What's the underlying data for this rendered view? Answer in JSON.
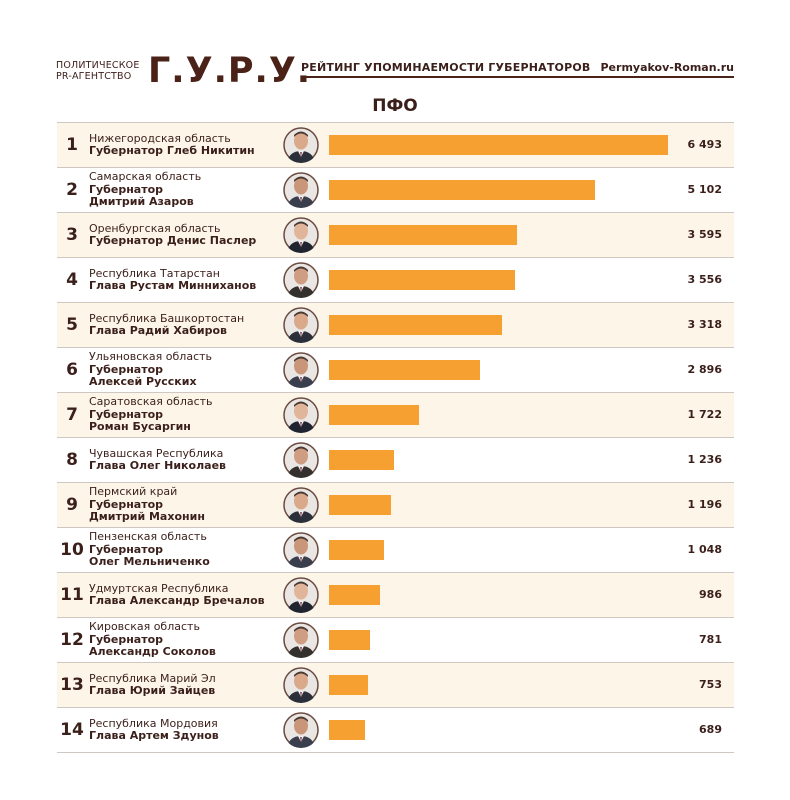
{
  "header": {
    "agency_line1": "ПОЛИТИЧЕСКОЕ",
    "agency_line2": "PR-АГЕНТСТВО",
    "logo": "Г.У.Р.У.",
    "rating_title": "РЕЙТИНГ УПОМИНАЕМОСТИ ГУБЕРНАТОРОВ",
    "site": "Permyakov-Roman.ru"
  },
  "section_title": "ПФО",
  "colors": {
    "bar": "#f5a031",
    "text": "#3b1f1a",
    "row_alt": "#fdf6e8"
  },
  "chart_data": {
    "type": "bar",
    "title": "ПФО",
    "orientation": "horizontal",
    "xlim": [
      0,
      6493
    ],
    "rows": [
      {
        "rank": "1",
        "region": "Нижегородская область",
        "title_lines": [
          "Губернатор Глеб Никитин"
        ],
        "value": 6493,
        "value_label": "6 493"
      },
      {
        "rank": "2",
        "region": "Самарская область",
        "title_lines": [
          "Губернатор",
          "Дмитрий Азаров"
        ],
        "value": 5102,
        "value_label": "5 102"
      },
      {
        "rank": "3",
        "region": "Оренбургская область",
        "title_lines": [
          "Губернатор Денис Паслер"
        ],
        "value": 3595,
        "value_label": "3 595"
      },
      {
        "rank": "4",
        "region": "Республика Татарстан",
        "title_lines": [
          "Глава Рустам Минниханов"
        ],
        "value": 3556,
        "value_label": "3 556"
      },
      {
        "rank": "5",
        "region": "Республика Башкортостан",
        "title_lines": [
          "Глава Радий Хабиров"
        ],
        "value": 3318,
        "value_label": "3 318"
      },
      {
        "rank": "6",
        "region": "Ульяновская область",
        "title_lines": [
          "Губернатор",
          "Алексей Русских"
        ],
        "value": 2896,
        "value_label": "2 896"
      },
      {
        "rank": "7",
        "region": "Саратовская область",
        "title_lines": [
          "Губернатор",
          "Роман Бусаргин"
        ],
        "value": 1722,
        "value_label": "1 722"
      },
      {
        "rank": "8",
        "region": "Чувашская Республика",
        "title_lines": [
          "Глава Олег Николаев"
        ],
        "value": 1236,
        "value_label": "1 236"
      },
      {
        "rank": "9",
        "region": "Пермский край",
        "title_lines": [
          "Губернатор",
          "Дмитрий Махонин"
        ],
        "value": 1196,
        "value_label": "1 196"
      },
      {
        "rank": "10",
        "region": "Пензенская область",
        "title_lines": [
          "Губернатор",
          "Олег Мельниченко"
        ],
        "value": 1048,
        "value_label": "1 048"
      },
      {
        "rank": "11",
        "region": "Удмуртская Республика",
        "title_lines": [
          "Глава Александр Бречалов"
        ],
        "value": 986,
        "value_label": "986"
      },
      {
        "rank": "12",
        "region": "Кировская область",
        "title_lines": [
          "Губернатор",
          "Александр Соколов"
        ],
        "value": 781,
        "value_label": "781"
      },
      {
        "rank": "13",
        "region": "Республика Марий Эл",
        "title_lines": [
          "Глава Юрий Зайцев"
        ],
        "value": 753,
        "value_label": "753"
      },
      {
        "rank": "14",
        "region": "Республика Мордовия",
        "title_lines": [
          "Глава Артем Здунов"
        ],
        "value": 689,
        "value_label": "689"
      }
    ]
  }
}
